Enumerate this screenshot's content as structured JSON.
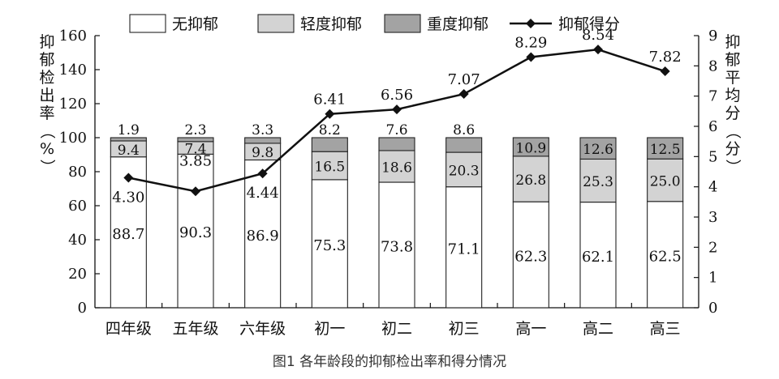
{
  "caption": "图1 各年龄段的抑郁检出率和得分情况",
  "chart_data": {
    "type": "bar",
    "stacked": true,
    "categories": [
      "四年级",
      "五年级",
      "六年级",
      "初一",
      "初二",
      "初三",
      "高一",
      "高二",
      "高三"
    ],
    "series": [
      {
        "name": "无抑郁",
        "values": [
          88.7,
          90.3,
          86.9,
          75.3,
          73.8,
          71.1,
          62.3,
          62.1,
          62.5
        ],
        "color": "#ffffff"
      },
      {
        "name": "轻度抑郁",
        "values": [
          9.4,
          7.4,
          9.8,
          16.5,
          18.6,
          20.3,
          26.8,
          25.3,
          25.0
        ],
        "color": "#d3d3d3"
      },
      {
        "name": "重度抑郁",
        "values": [
          1.9,
          2.3,
          3.3,
          8.2,
          7.6,
          8.6,
          10.9,
          12.6,
          12.5
        ],
        "color": "#a3a3a3"
      }
    ],
    "line": {
      "name": "抑郁得分",
      "values": [
        4.3,
        3.85,
        4.44,
        6.41,
        6.56,
        7.07,
        8.29,
        8.54,
        7.82
      ],
      "axis": "right"
    },
    "y_left": {
      "label": "抑郁检出率（%）",
      "lim": [
        0,
        160
      ],
      "ticks": [
        0,
        20,
        40,
        60,
        80,
        100,
        120,
        140,
        160
      ]
    },
    "y_right": {
      "label": "抑郁平均分（分）",
      "lim": [
        0,
        9
      ],
      "ticks": [
        0,
        1,
        2,
        3,
        4,
        5,
        6,
        7,
        8,
        9
      ]
    },
    "legend": "top",
    "grid": false
  }
}
